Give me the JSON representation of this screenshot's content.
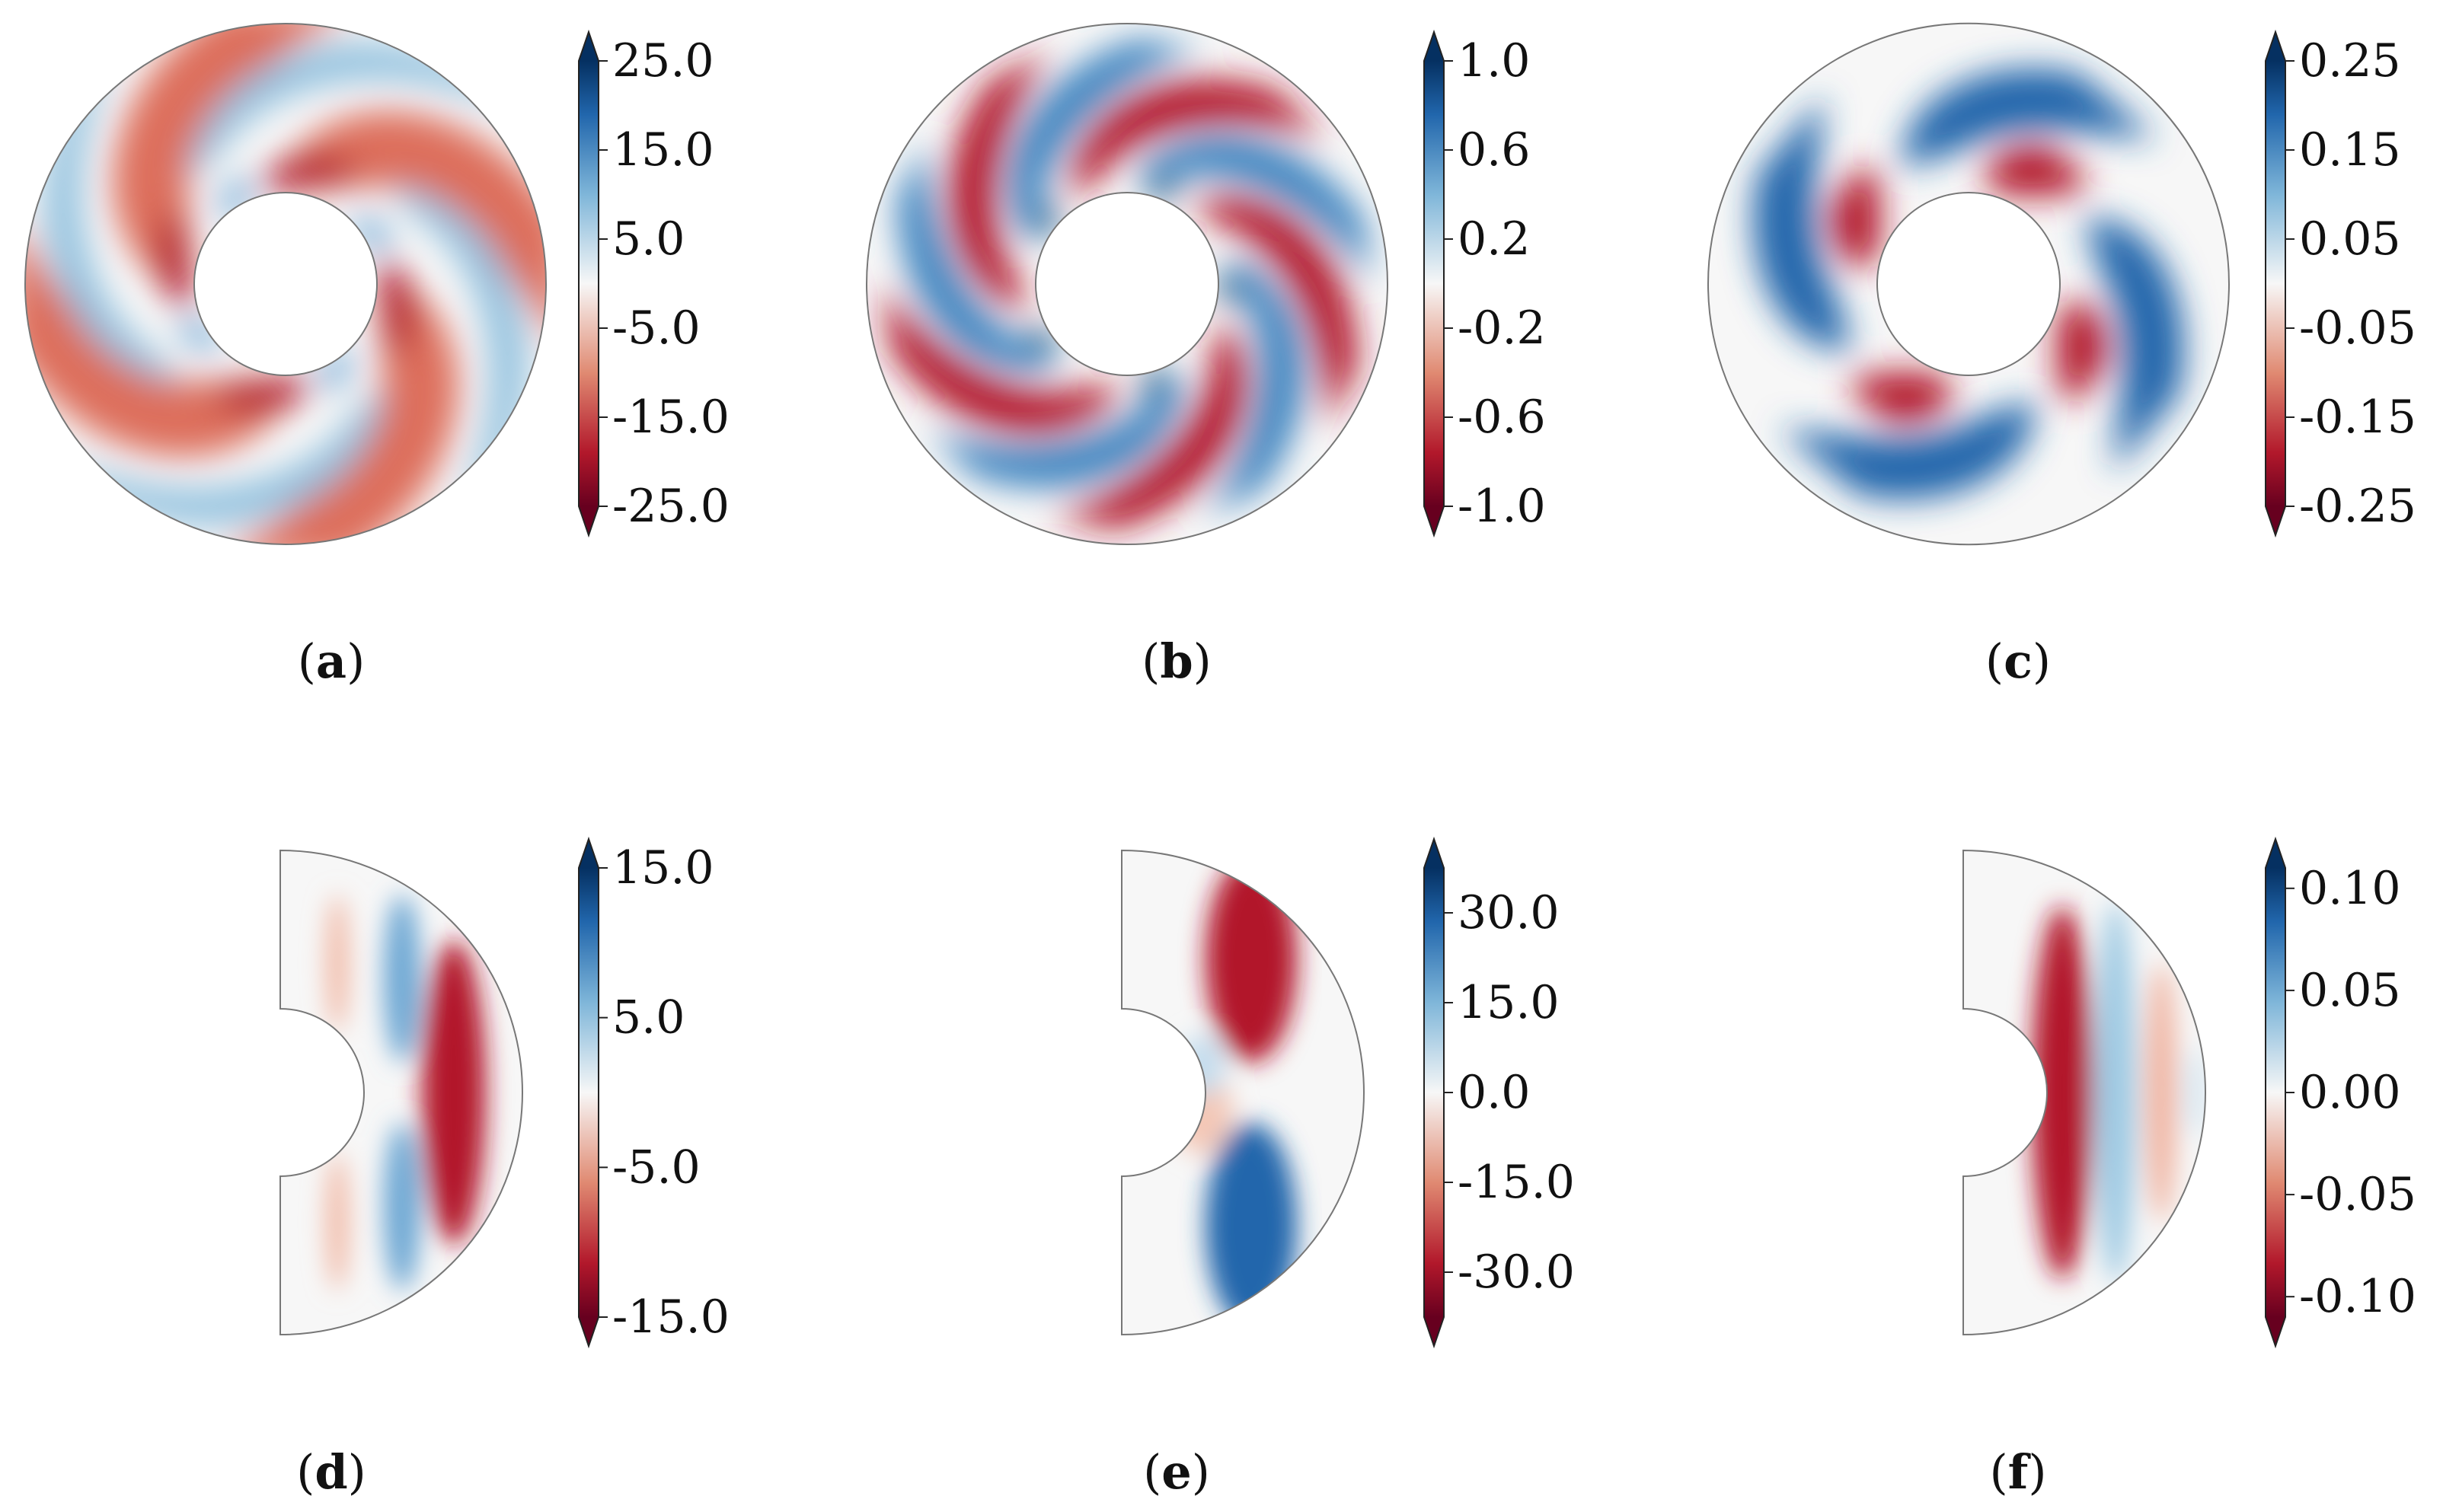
{
  "colors": {
    "dark_red": "#67001f",
    "red": "#b2182b",
    "light_red": "#f4a582",
    "white": "#f7f7f7",
    "light_blue": "#92c5de",
    "blue": "#2166ac",
    "dark_blue": "#053061",
    "outline": "#777777"
  },
  "chart_data": [
    {
      "type": "heatmap",
      "panel_label": "a",
      "geometry": "annulus",
      "arms": 4,
      "colorbar": {
        "range": [
          -25.0,
          25.0
        ],
        "ticks": [
          "25.0",
          "15.0",
          "5.0",
          "-5.0",
          "-15.0",
          "-25.0"
        ],
        "extend": "both"
      }
    },
    {
      "type": "heatmap",
      "panel_label": "b",
      "geometry": "annulus",
      "arms": 5,
      "colorbar": {
        "range": [
          -1.0,
          1.0
        ],
        "ticks": [
          "1.0",
          "0.6",
          "0.2",
          "-0.2",
          "-0.6",
          "-1.0"
        ],
        "extend": "both"
      }
    },
    {
      "type": "heatmap",
      "panel_label": "c",
      "geometry": "annulus",
      "arms": 4,
      "colorbar": {
        "range": [
          -0.25,
          0.25
        ],
        "ticks": [
          "0.25",
          "0.15",
          "0.05",
          "-0.05",
          "-0.15",
          "-0.25"
        ],
        "extend": "both"
      }
    },
    {
      "type": "heatmap",
      "panel_label": "d",
      "geometry": "meridional",
      "colorbar": {
        "range": [
          -15.0,
          15.0
        ],
        "ticks": [
          "15.0",
          "5.0",
          "-5.0",
          "-15.0"
        ],
        "extend": "both"
      }
    },
    {
      "type": "heatmap",
      "panel_label": "e",
      "geometry": "meridional",
      "colorbar": {
        "range": [
          -37.5,
          37.5
        ],
        "ticks": [
          "30.0",
          "15.0",
          "0.0",
          "-15.0",
          "-30.0"
        ],
        "extend": "both"
      }
    },
    {
      "type": "heatmap",
      "panel_label": "f",
      "geometry": "meridional",
      "colorbar": {
        "range": [
          -0.11,
          0.11
        ],
        "ticks": [
          "0.10",
          "0.05",
          "0.00",
          "-0.05",
          "-0.10"
        ],
        "extend": "both"
      }
    }
  ]
}
